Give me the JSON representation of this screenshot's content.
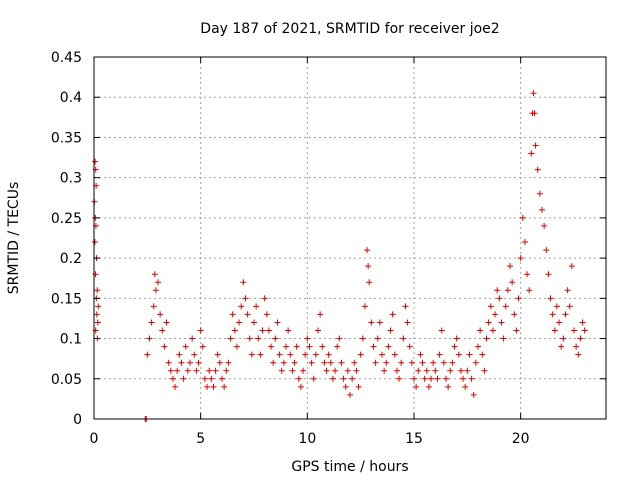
{
  "chart_data": {
    "type": "scatter",
    "title": "Day 187 of 2021, SRMTID for receiver joe2",
    "xlabel": "GPS time / hours",
    "ylabel": "SRMTID / TECUs",
    "xlim": [
      0,
      24
    ],
    "ylim": [
      0,
      0.45
    ],
    "x_ticks": [
      0,
      5,
      10,
      15,
      20
    ],
    "x_tick_labels": [
      "0",
      "5",
      "10",
      "15",
      "20"
    ],
    "y_ticks": [
      0,
      0.05,
      0.1,
      0.15,
      0.2,
      0.25,
      0.3,
      0.35,
      0.4,
      0.45
    ],
    "y_tick_labels": [
      "0",
      "0.05",
      "0.1",
      "0.15",
      "0.2",
      "0.25",
      "0.3",
      "0.35",
      "0.4",
      "0.45"
    ],
    "grid": true,
    "marker": "plus",
    "series": [
      {
        "name": "SRMTID",
        "color": "#e00000",
        "points": [
          [
            0.05,
            0.32
          ],
          [
            0.08,
            0.31
          ],
          [
            0.1,
            0.29
          ],
          [
            0.02,
            0.27
          ],
          [
            0.06,
            0.25
          ],
          [
            0.09,
            0.24
          ],
          [
            0.04,
            0.22
          ],
          [
            0.12,
            0.2
          ],
          [
            0.07,
            0.18
          ],
          [
            0.15,
            0.16
          ],
          [
            0.11,
            0.15
          ],
          [
            0.13,
            0.13
          ],
          [
            0.08,
            0.11
          ],
          [
            0.16,
            0.1
          ],
          [
            0.2,
            0.14
          ],
          [
            0.18,
            0.12
          ],
          [
            2.4,
            0.0
          ],
          [
            2.45,
            0.0
          ],
          [
            2.5,
            0.08
          ],
          [
            2.6,
            0.1
          ],
          [
            2.7,
            0.12
          ],
          [
            2.8,
            0.14
          ],
          [
            2.85,
            0.18
          ],
          [
            2.9,
            0.16
          ],
          [
            3.0,
            0.17
          ],
          [
            3.1,
            0.13
          ],
          [
            3.2,
            0.11
          ],
          [
            3.3,
            0.09
          ],
          [
            3.4,
            0.12
          ],
          [
            3.5,
            0.07
          ],
          [
            3.6,
            0.06
          ],
          [
            3.7,
            0.05
          ],
          [
            3.8,
            0.04
          ],
          [
            3.9,
            0.06
          ],
          [
            4.0,
            0.08
          ],
          [
            4.1,
            0.07
          ],
          [
            4.2,
            0.05
          ],
          [
            4.3,
            0.09
          ],
          [
            4.4,
            0.06
          ],
          [
            4.5,
            0.07
          ],
          [
            4.6,
            0.1
          ],
          [
            4.7,
            0.08
          ],
          [
            4.8,
            0.06
          ],
          [
            4.9,
            0.07
          ],
          [
            5.0,
            0.11
          ],
          [
            5.1,
            0.09
          ],
          [
            5.2,
            0.05
          ],
          [
            5.3,
            0.04
          ],
          [
            5.4,
            0.06
          ],
          [
            5.5,
            0.05
          ],
          [
            5.6,
            0.04
          ],
          [
            5.7,
            0.06
          ],
          [
            5.8,
            0.08
          ],
          [
            5.9,
            0.07
          ],
          [
            6.0,
            0.05
          ],
          [
            6.1,
            0.04
          ],
          [
            6.2,
            0.06
          ],
          [
            6.3,
            0.07
          ],
          [
            6.4,
            0.1
          ],
          [
            6.5,
            0.13
          ],
          [
            6.6,
            0.11
          ],
          [
            6.7,
            0.09
          ],
          [
            6.8,
            0.12
          ],
          [
            6.9,
            0.14
          ],
          [
            7.0,
            0.17
          ],
          [
            7.1,
            0.15
          ],
          [
            7.2,
            0.13
          ],
          [
            7.3,
            0.1
          ],
          [
            7.4,
            0.08
          ],
          [
            7.5,
            0.12
          ],
          [
            7.6,
            0.14
          ],
          [
            7.7,
            0.1
          ],
          [
            7.8,
            0.08
          ],
          [
            7.9,
            0.11
          ],
          [
            8.0,
            0.15
          ],
          [
            8.1,
            0.13
          ],
          [
            8.2,
            0.11
          ],
          [
            8.3,
            0.09
          ],
          [
            8.4,
            0.07
          ],
          [
            8.5,
            0.1
          ],
          [
            8.6,
            0.12
          ],
          [
            8.7,
            0.08
          ],
          [
            8.8,
            0.06
          ],
          [
            8.9,
            0.07
          ],
          [
            9.0,
            0.09
          ],
          [
            9.1,
            0.11
          ],
          [
            9.2,
            0.08
          ],
          [
            9.3,
            0.06
          ],
          [
            9.4,
            0.07
          ],
          [
            9.5,
            0.09
          ],
          [
            9.6,
            0.05
          ],
          [
            9.7,
            0.04
          ],
          [
            9.8,
            0.06
          ],
          [
            9.9,
            0.08
          ],
          [
            10.0,
            0.1
          ],
          [
            10.1,
            0.09
          ],
          [
            10.2,
            0.07
          ],
          [
            10.3,
            0.05
          ],
          [
            10.4,
            0.08
          ],
          [
            10.5,
            0.11
          ],
          [
            10.6,
            0.13
          ],
          [
            10.7,
            0.09
          ],
          [
            10.8,
            0.07
          ],
          [
            10.9,
            0.06
          ],
          [
            11.0,
            0.08
          ],
          [
            11.1,
            0.07
          ],
          [
            11.2,
            0.05
          ],
          [
            11.3,
            0.06
          ],
          [
            11.4,
            0.09
          ],
          [
            11.5,
            0.1
          ],
          [
            11.6,
            0.07
          ],
          [
            11.7,
            0.05
          ],
          [
            11.8,
            0.04
          ],
          [
            11.9,
            0.06
          ],
          [
            12.0,
            0.03
          ],
          [
            12.1,
            0.05
          ],
          [
            12.2,
            0.07
          ],
          [
            12.3,
            0.06
          ],
          [
            12.4,
            0.04
          ],
          [
            12.5,
            0.08
          ],
          [
            12.6,
            0.1
          ],
          [
            12.7,
            0.14
          ],
          [
            12.8,
            0.21
          ],
          [
            12.85,
            0.19
          ],
          [
            12.9,
            0.17
          ],
          [
            13.0,
            0.12
          ],
          [
            13.1,
            0.09
          ],
          [
            13.2,
            0.07
          ],
          [
            13.3,
            0.1
          ],
          [
            13.4,
            0.12
          ],
          [
            13.5,
            0.08
          ],
          [
            13.6,
            0.06
          ],
          [
            13.7,
            0.07
          ],
          [
            13.8,
            0.09
          ],
          [
            13.9,
            0.11
          ],
          [
            14.0,
            0.13
          ],
          [
            14.1,
            0.08
          ],
          [
            14.2,
            0.06
          ],
          [
            14.3,
            0.05
          ],
          [
            14.4,
            0.07
          ],
          [
            14.5,
            0.1
          ],
          [
            14.6,
            0.14
          ],
          [
            14.7,
            0.12
          ],
          [
            14.8,
            0.09
          ],
          [
            14.9,
            0.07
          ],
          [
            15.0,
            0.05
          ],
          [
            15.1,
            0.04
          ],
          [
            15.2,
            0.06
          ],
          [
            15.3,
            0.08
          ],
          [
            15.4,
            0.07
          ],
          [
            15.5,
            0.05
          ],
          [
            15.6,
            0.06
          ],
          [
            15.7,
            0.04
          ],
          [
            15.8,
            0.05
          ],
          [
            15.9,
            0.07
          ],
          [
            16.0,
            0.06
          ],
          [
            16.1,
            0.05
          ],
          [
            16.2,
            0.08
          ],
          [
            16.3,
            0.11
          ],
          [
            16.4,
            0.07
          ],
          [
            16.5,
            0.05
          ],
          [
            16.6,
            0.04
          ],
          [
            16.7,
            0.06
          ],
          [
            16.8,
            0.07
          ],
          [
            16.9,
            0.09
          ],
          [
            17.0,
            0.1
          ],
          [
            17.1,
            0.08
          ],
          [
            17.2,
            0.06
          ],
          [
            17.3,
            0.05
          ],
          [
            17.4,
            0.04
          ],
          [
            17.5,
            0.06
          ],
          [
            17.6,
            0.08
          ],
          [
            17.7,
            0.05
          ],
          [
            17.8,
            0.03
          ],
          [
            17.9,
            0.07
          ],
          [
            18.0,
            0.09
          ],
          [
            18.1,
            0.11
          ],
          [
            18.2,
            0.08
          ],
          [
            18.3,
            0.06
          ],
          [
            18.4,
            0.1
          ],
          [
            18.5,
            0.12
          ],
          [
            18.6,
            0.14
          ],
          [
            18.7,
            0.11
          ],
          [
            18.8,
            0.13
          ],
          [
            18.9,
            0.16
          ],
          [
            19.0,
            0.15
          ],
          [
            19.1,
            0.12
          ],
          [
            19.2,
            0.1
          ],
          [
            19.3,
            0.14
          ],
          [
            19.4,
            0.16
          ],
          [
            19.5,
            0.19
          ],
          [
            19.6,
            0.17
          ],
          [
            19.7,
            0.13
          ],
          [
            19.8,
            0.11
          ],
          [
            19.9,
            0.15
          ],
          [
            20.0,
            0.2
          ],
          [
            20.1,
            0.25
          ],
          [
            20.2,
            0.22
          ],
          [
            20.3,
            0.18
          ],
          [
            20.4,
            0.16
          ],
          [
            20.5,
            0.33
          ],
          [
            20.55,
            0.38
          ],
          [
            20.6,
            0.405
          ],
          [
            20.65,
            0.38
          ],
          [
            20.7,
            0.34
          ],
          [
            20.8,
            0.31
          ],
          [
            20.9,
            0.28
          ],
          [
            21.0,
            0.26
          ],
          [
            21.1,
            0.24
          ],
          [
            21.2,
            0.21
          ],
          [
            21.3,
            0.18
          ],
          [
            21.4,
            0.15
          ],
          [
            21.5,
            0.13
          ],
          [
            21.6,
            0.11
          ],
          [
            21.7,
            0.14
          ],
          [
            21.8,
            0.12
          ],
          [
            21.9,
            0.09
          ],
          [
            22.0,
            0.1
          ],
          [
            22.1,
            0.13
          ],
          [
            22.2,
            0.16
          ],
          [
            22.3,
            0.14
          ],
          [
            22.4,
            0.19
          ],
          [
            22.5,
            0.11
          ],
          [
            22.6,
            0.09
          ],
          [
            22.7,
            0.08
          ],
          [
            22.8,
            0.1
          ],
          [
            22.9,
            0.12
          ],
          [
            23.0,
            0.11
          ]
        ]
      }
    ]
  }
}
